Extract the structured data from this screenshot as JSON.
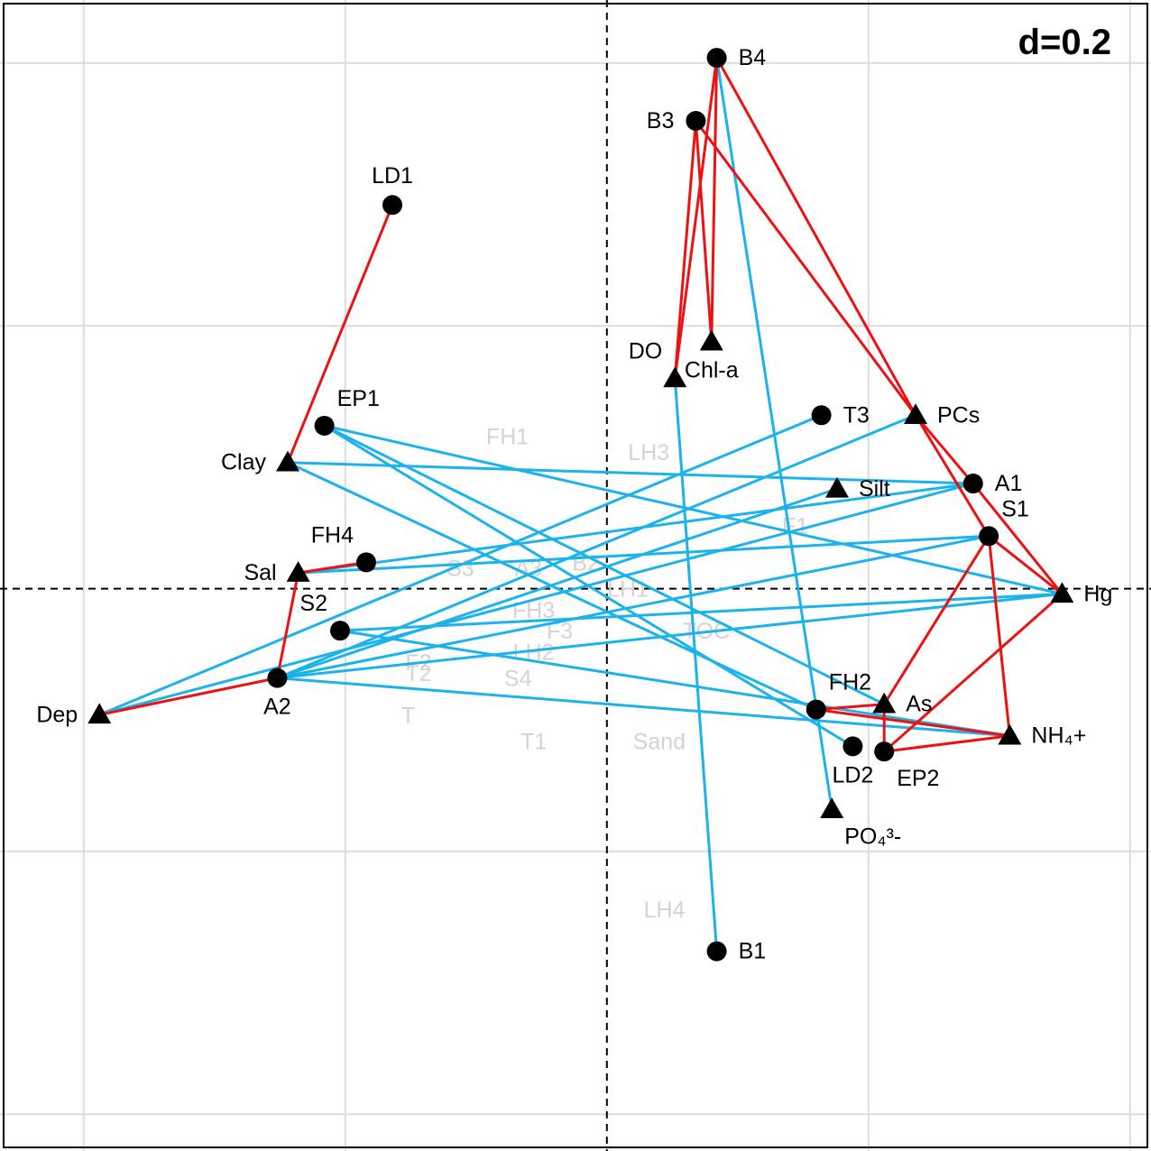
{
  "chart_data": {
    "type": "scatter",
    "plot_kind": "co-inertia ordination biplot",
    "scale_label": "d=0.2",
    "xlim": [
      -1.16,
      1.04
    ],
    "ylim": [
      -1.07,
      1.12
    ],
    "grid": true,
    "grid_step": 0.5,
    "site_marker": "circle",
    "variable_marker": "triangle",
    "colors": {
      "red": "#ee1111",
      "blue": "#1cb3ec",
      "grid": "#dddddd",
      "axis": "#000000",
      "background_label": "#d3d3d3",
      "marker": "#000000"
    },
    "sites": [
      {
        "label": "B4",
        "x": 0.21,
        "y": 1.01
      },
      {
        "label": "B3",
        "x": 0.17,
        "y": 0.89
      },
      {
        "label": "LD1",
        "x": -0.41,
        "y": 0.73
      },
      {
        "label": "EP1",
        "x": -0.54,
        "y": 0.31
      },
      {
        "label": "T3",
        "x": 0.41,
        "y": 0.33
      },
      {
        "label": "A1",
        "x": 0.7,
        "y": 0.2
      },
      {
        "label": "S1",
        "x": 0.73,
        "y": 0.1
      },
      {
        "label": "FH4",
        "x": -0.46,
        "y": 0.05
      },
      {
        "label": "S2",
        "x": -0.51,
        "y": -0.08
      },
      {
        "label": "A2",
        "x": -0.63,
        "y": -0.17
      },
      {
        "label": "FH2",
        "x": 0.4,
        "y": -0.23
      },
      {
        "label": "LD2",
        "x": 0.47,
        "y": -0.3
      },
      {
        "label": "EP2",
        "x": 0.53,
        "y": -0.31
      },
      {
        "label": "B1",
        "x": 0.21,
        "y": -0.69
      }
    ],
    "variables": [
      {
        "label": "Chl-a",
        "x": 0.2,
        "y": 0.47
      },
      {
        "label": "DO",
        "x": 0.13,
        "y": 0.4
      },
      {
        "label": "PCs",
        "x": 0.59,
        "y": 0.33
      },
      {
        "label": "Silt",
        "x": 0.44,
        "y": 0.19
      },
      {
        "label": "Clay",
        "x": -0.61,
        "y": 0.24
      },
      {
        "label": "Sal",
        "x": -0.59,
        "y": 0.03
      },
      {
        "label": "Hg",
        "x": 0.87,
        "y": -0.01
      },
      {
        "label": "As",
        "x": 0.53,
        "y": -0.22
      },
      {
        "label": "NH₄+",
        "x": 0.77,
        "y": -0.28
      },
      {
        "label": "PO₄³-",
        "x": 0.43,
        "y": -0.42
      },
      {
        "label": "Dep",
        "x": -0.97,
        "y": -0.24
      }
    ],
    "background_labels": [
      {
        "label": "FH1",
        "x": -0.19,
        "y": 0.29
      },
      {
        "label": "LH3",
        "x": 0.08,
        "y": 0.26
      },
      {
        "label": "F1",
        "x": 0.36,
        "y": 0.12
      },
      {
        "label": "S3",
        "x": -0.28,
        "y": 0.04
      },
      {
        "label": "A3",
        "x": -0.15,
        "y": 0.04
      },
      {
        "label": "B2",
        "x": -0.04,
        "y": 0.05
      },
      {
        "label": "LH1",
        "x": 0.04,
        "y": 0.0
      },
      {
        "label": "FH3",
        "x": -0.14,
        "y": -0.04
      },
      {
        "label": "F3",
        "x": -0.09,
        "y": -0.08
      },
      {
        "label": "TOC",
        "x": 0.19,
        "y": -0.08
      },
      {
        "label": "LH2",
        "x": -0.14,
        "y": -0.12
      },
      {
        "label": "F2",
        "x": -0.36,
        "y": -0.14
      },
      {
        "label": "T2",
        "x": -0.36,
        "y": -0.16
      },
      {
        "label": "S4",
        "x": -0.17,
        "y": -0.17
      },
      {
        "label": "T",
        "x": -0.38,
        "y": -0.24
      },
      {
        "label": "T1",
        "x": -0.14,
        "y": -0.29
      },
      {
        "label": "Sand",
        "x": 0.1,
        "y": -0.29
      },
      {
        "label": "LH4",
        "x": 0.11,
        "y": -0.61
      }
    ],
    "links_red": [
      [
        "LD1",
        "Clay"
      ],
      [
        "B3",
        "DO"
      ],
      [
        "B3",
        "Chl-a"
      ],
      [
        "B4",
        "DO"
      ],
      [
        "B4",
        "Chl-a"
      ],
      [
        "B3",
        "PCs"
      ],
      [
        "B4",
        "PCs"
      ],
      [
        "PCs",
        "A1"
      ],
      [
        "PCs",
        "S1"
      ],
      [
        "A1",
        "Hg"
      ],
      [
        "S1",
        "Hg"
      ],
      [
        "S1",
        "As"
      ],
      [
        "S1",
        "NH₄+"
      ],
      [
        "Hg",
        "EP2"
      ],
      [
        "EP2",
        "NH₄+"
      ],
      [
        "EP2",
        "As"
      ],
      [
        "FH2",
        "As"
      ],
      [
        "FH2",
        "NH₄+"
      ],
      [
        "FH4",
        "Sal"
      ],
      [
        "Sal",
        "A2"
      ],
      [
        "A2",
        "Dep"
      ]
    ],
    "links_blue": [
      [
        "B4",
        "PO₄³-"
      ],
      [
        "DO",
        "B1"
      ],
      [
        "EP1",
        "Hg"
      ],
      [
        "EP1",
        "As"
      ],
      [
        "EP1",
        "LD2"
      ],
      [
        "Clay",
        "A1"
      ],
      [
        "Clay",
        "FH2"
      ],
      [
        "Dep",
        "T3"
      ],
      [
        "Dep",
        "A1"
      ],
      [
        "Sal",
        "S1"
      ],
      [
        "Sal",
        "A1"
      ],
      [
        "A2",
        "PCs"
      ],
      [
        "A2",
        "Silt"
      ],
      [
        "A2",
        "S1"
      ],
      [
        "A2",
        "Hg"
      ],
      [
        "A2",
        "NH₄+"
      ],
      [
        "S2",
        "Hg"
      ],
      [
        "S2",
        "NH₄+"
      ]
    ],
    "label_placement": {
      "B4": "right",
      "B3": "left",
      "LD1": "above",
      "EP1": "above-right",
      "T3": "right",
      "A1": "right",
      "S1": "above-right",
      "FH4": "above-left",
      "S2": "above-left",
      "A2": "below",
      "FH2": "above-right",
      "LD2": "below",
      "EP2": "below-right",
      "B1": "right",
      "Chl-a": "below",
      "DO": "above-left",
      "PCs": "right",
      "Silt": "right",
      "Clay": "left",
      "Sal": "left",
      "Hg": "right",
      "As": "right",
      "NH₄+": "right",
      "PO₄³-": "below-right",
      "Dep": "left"
    }
  }
}
